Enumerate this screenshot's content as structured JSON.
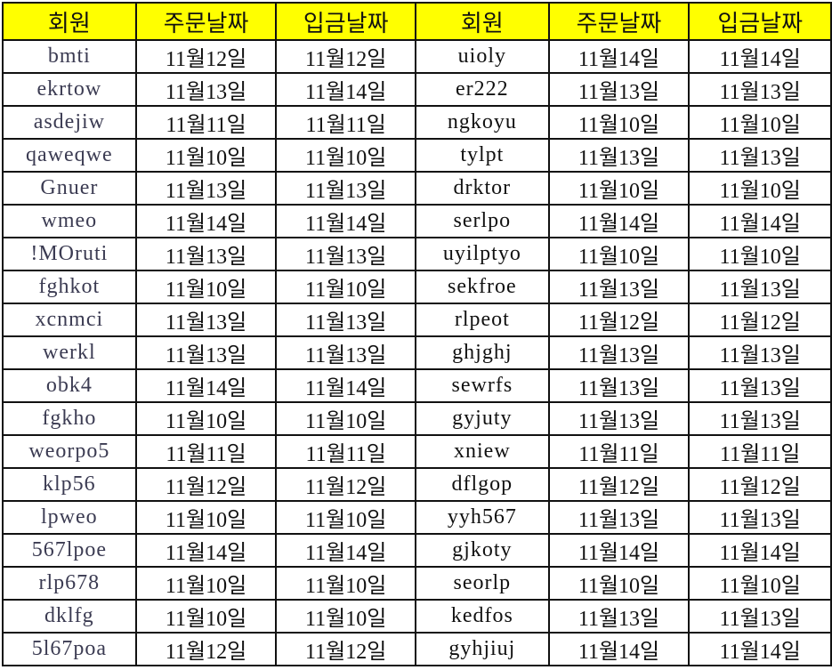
{
  "header": [
    "회원",
    "주문날짜",
    "입금날짜",
    "회원",
    "주문날짜",
    "입금날짜"
  ],
  "colors": {
    "header_background": "#ffff00",
    "grid": "#111111"
  },
  "rows": [
    [
      "bmti",
      "11월12일",
      "11월12일",
      "uioly",
      "11월14일",
      "11월14일"
    ],
    [
      "ekrtow",
      "11월13일",
      "11월14일",
      "er222",
      "11월13일",
      "11월13일"
    ],
    [
      "asdejiw",
      "11월11일",
      "11월11일",
      "ngkoyu",
      "11월10일",
      "11월10일"
    ],
    [
      "qaweqwe",
      "11월10일",
      "11월10일",
      "tylpt",
      "11월13일",
      "11월13일"
    ],
    [
      "Gnuer",
      "11월13일",
      "11월13일",
      "drktor",
      "11월10일",
      "11월10일"
    ],
    [
      "wmeo",
      "11월14일",
      "11월14일",
      "serlpo",
      "11월14일",
      "11월14일"
    ],
    [
      "!MOruti",
      "11월13일",
      "11월13일",
      "uyilptyo",
      "11월10일",
      "11월10일"
    ],
    [
      "fghkot",
      "11월10일",
      "11월10일",
      "sekfroe",
      "11월13일",
      "11월13일"
    ],
    [
      "xcnmci",
      "11월13일",
      "11월13일",
      "rlpeot",
      "11월12일",
      "11월12일"
    ],
    [
      "werkl",
      "11월13일",
      "11월13일",
      "ghjghj",
      "11월13일",
      "11월13일"
    ],
    [
      "obk4",
      "11월14일",
      "11월14일",
      "sewrfs",
      "11월13일",
      "11월13일"
    ],
    [
      "fgkho",
      "11월10일",
      "11월10일",
      "gyjuty",
      "11월13일",
      "11월13일"
    ],
    [
      "weorpo5",
      "11월11일",
      "11월11일",
      "xniew",
      "11월11일",
      "11월11일"
    ],
    [
      "klp56",
      "11월12일",
      "11월12일",
      "dflgop",
      "11월12일",
      "11월12일"
    ],
    [
      "lpweo",
      "11월10일",
      "11월10일",
      "yyh567",
      "11월13일",
      "11월13일"
    ],
    [
      "567lpoe",
      "11월14일",
      "11월14일",
      "gjkoty",
      "11월14일",
      "11월14일"
    ],
    [
      "rlp678",
      "11월10일",
      "11월10일",
      "seorlp",
      "11월10일",
      "11월10일"
    ],
    [
      "dklfg",
      "11월10일",
      "11월10일",
      "kedfos",
      "11월13일",
      "11월13일"
    ],
    [
      "5l67poa",
      "11월12일",
      "11월12일",
      "gyhjiuj",
      "11월14일",
      "11월14일"
    ]
  ]
}
